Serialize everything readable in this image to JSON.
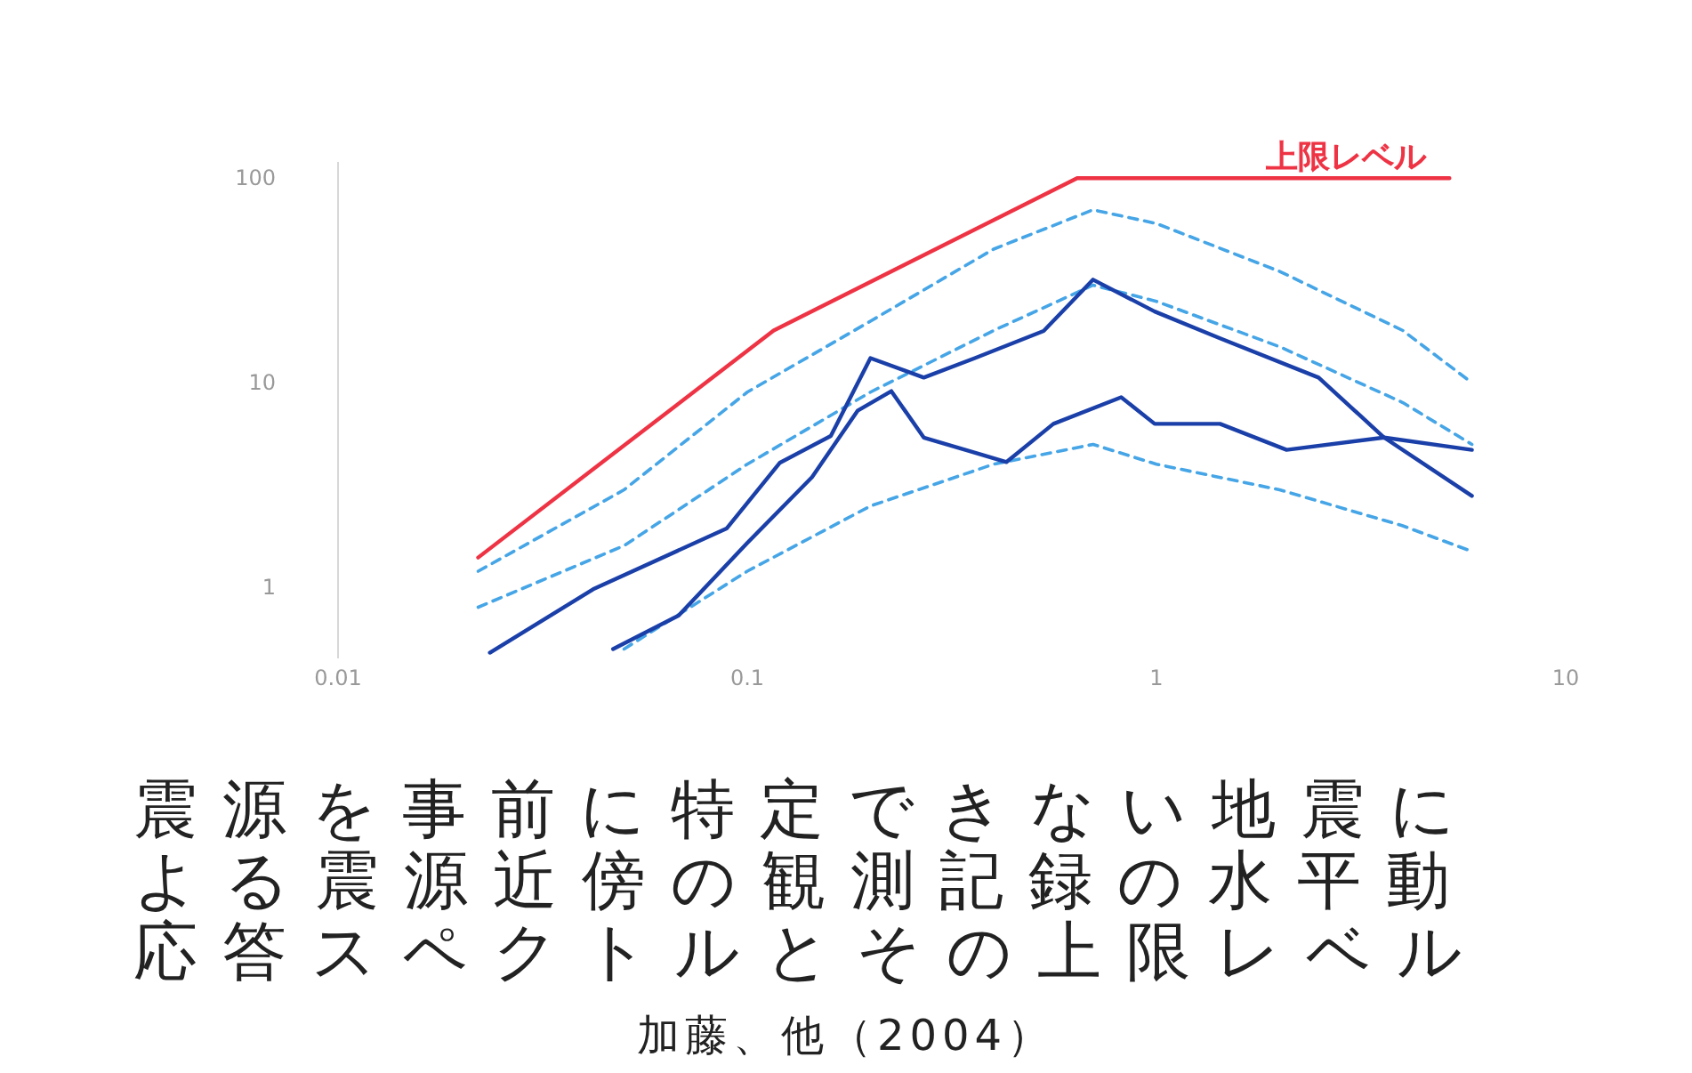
{
  "chart_data": {
    "type": "line",
    "title": "震源を事前に特定できない地震による震源近傍の観測記録の水平動応答スペクトルとその上限レベル",
    "annotations": [
      {
        "text": "上限レベル",
        "x": 2.9,
        "y": 100
      },
      "加藤、他（2004）"
    ],
    "log": "xy",
    "xlim": [
      0.01,
      10
    ],
    "ylim": [
      0.45,
      120
    ],
    "xticks": [
      0.01,
      0.1,
      1,
      10
    ],
    "yticks": [
      1,
      10,
      100
    ],
    "grid": false,
    "marker": "none",
    "series": [
      {
        "color": "#ee3344",
        "line_style": "solid",
        "x": [
          0.022,
          0.116,
          0.64,
          5.2
        ],
        "values": [
          1.4,
          18,
          100,
          100
        ]
      },
      {
        "color": "#45a5e6",
        "line_style": "dashed",
        "x": [
          0.022,
          0.05,
          0.1,
          0.2,
          0.4,
          0.7,
          1.0,
          2,
          4,
          5.9
        ],
        "values": [
          1.2,
          3,
          9,
          20,
          45,
          70,
          60,
          35,
          18,
          10
        ]
      },
      {
        "color": "#45a5e6",
        "line_style": "dashed",
        "x": [
          0.022,
          0.05,
          0.1,
          0.2,
          0.4,
          0.7,
          1.0,
          2,
          4,
          5.9
        ],
        "values": [
          0.8,
          1.6,
          4,
          9,
          18,
          30,
          25,
          15,
          8,
          5
        ]
      },
      {
        "color": "#45a5e6",
        "line_style": "dashed",
        "x": [
          0.05,
          0.1,
          0.2,
          0.4,
          0.7,
          1.0,
          2,
          4,
          5.9
        ],
        "values": [
          0.5,
          1.2,
          2.5,
          4,
          5,
          4,
          3,
          2,
          1.5
        ]
      },
      {
        "color": "#1a3fa8",
        "line_style": "solid",
        "x": [
          0.0235,
          0.042,
          0.089,
          0.12,
          0.16,
          0.2,
          0.27,
          0.36,
          0.53,
          0.7,
          0.99,
          1.43,
          2.49,
          3.6,
          5.9
        ],
        "values": [
          0.48,
          0.98,
          1.94,
          4.06,
          5.5,
          13.2,
          10.6,
          13.2,
          17.9,
          31.9,
          22.3,
          16.5,
          10.6,
          5.4,
          2.8
        ]
      },
      {
        "color": "#1a3fa8",
        "line_style": "solid",
        "x": [
          0.047,
          0.068,
          0.1,
          0.144,
          0.186,
          0.225,
          0.27,
          0.43,
          0.56,
          0.82,
          0.99,
          1.43,
          2.08,
          3.6,
          5.9
        ],
        "values": [
          0.5,
          0.73,
          1.65,
          3.46,
          7.3,
          9.1,
          5.4,
          4.1,
          6.3,
          8.5,
          6.3,
          6.3,
          4.7,
          5.4,
          4.7
        ]
      }
    ]
  }
}
